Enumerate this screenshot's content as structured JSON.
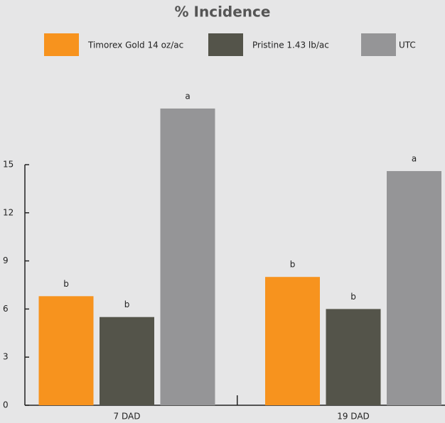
{
  "chart_data": {
    "type": "bar",
    "title": "% Incidence",
    "categories": [
      "7 DAD",
      "19 DAD"
    ],
    "series": [
      {
        "name": "Timorex Gold 14 oz/ac",
        "color": "#f7931e",
        "values": [
          6.8,
          8.0
        ],
        "significance": [
          "b",
          "b"
        ]
      },
      {
        "name": "Pristine 1.43 lb/ac",
        "color": "#54544a",
        "values": [
          5.5,
          6.0
        ],
        "significance": [
          "b",
          "b"
        ]
      },
      {
        "name": "UTC",
        "color": "#959597",
        "values": [
          18.5,
          14.6
        ],
        "significance": [
          "a",
          "a"
        ]
      }
    ],
    "ylim": [
      0,
      19
    ],
    "yticks": [
      0,
      3,
      6,
      9,
      12,
      15
    ],
    "grid": false,
    "legend": "top"
  }
}
